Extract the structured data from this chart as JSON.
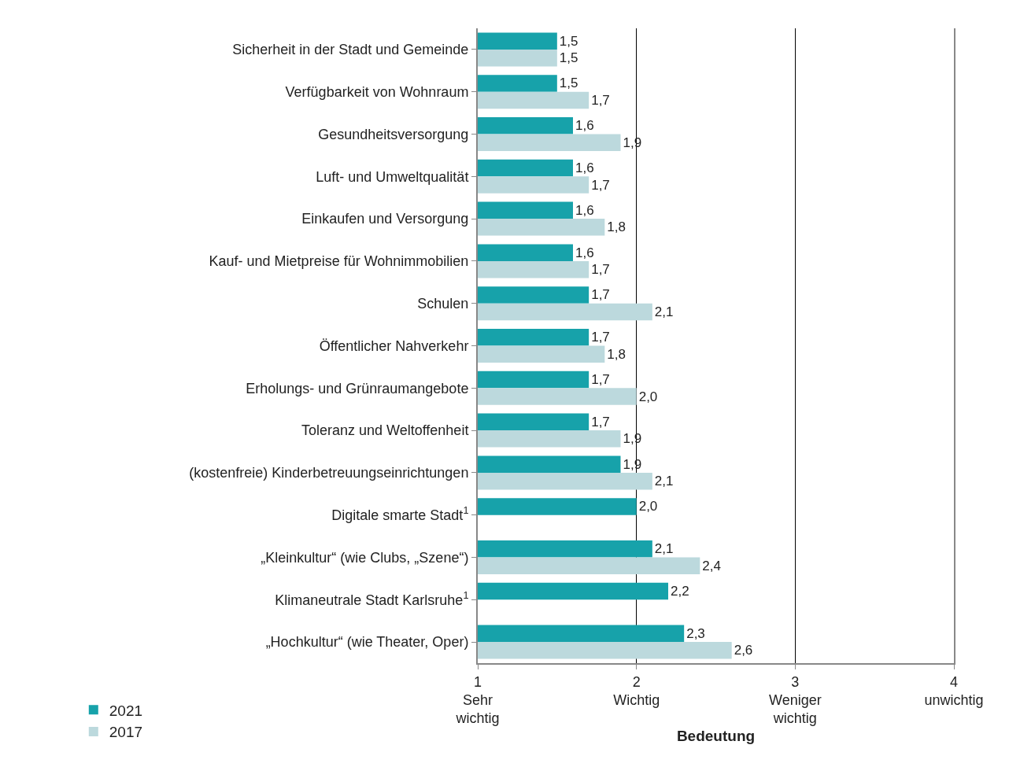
{
  "chart_data": {
    "type": "bar",
    "orientation": "horizontal",
    "xlabel": "Bedeutung",
    "categories": [
      "Sicherheit in der Stadt und Gemeinde",
      "Verfügbarkeit von Wohnraum",
      "Gesundheitsversorgung",
      "Luft- und Umweltqualität",
      "Einkaufen und Versorgung",
      "Kauf- und Mietpreise für Wohnimmobilien",
      "Schulen",
      "Öffentlicher Nahverkehr",
      "Erholungs- und Grünraumangebote",
      "Toleranz und Weltoffenheit",
      "(kostenfreie) Kinderbetreuungseinrichtungen",
      "Digitale smarte Stadt$^{1}$",
      "„Kleinkultur“ (wie Clubs, „Szene“)",
      "Klimaneutrale Stadt Karlsruhe$^{1}$",
      "„Hochkultur“ (wie Theater, Oper)"
    ],
    "series": [
      {
        "name": "2021",
        "color": "#17a2aa",
        "values": [
          1.5,
          1.5,
          1.6,
          1.6,
          1.6,
          1.6,
          1.7,
          1.7,
          1.7,
          1.7,
          1.9,
          2.0,
          2.1,
          2.2,
          2.3
        ],
        "value_labels": [
          "1,5",
          "1,5",
          "1,6",
          "1,6",
          "1,6",
          "1,6",
          "1,7",
          "1,7",
          "1,7",
          "1,7",
          "1,9",
          "2,0",
          "2,1",
          "2,2",
          "2,3"
        ]
      },
      {
        "name": "2017",
        "color": "#bcd9dd",
        "values": [
          1.5,
          1.7,
          1.9,
          1.7,
          1.8,
          1.7,
          2.1,
          1.8,
          2.0,
          1.9,
          2.1,
          null,
          2.4,
          null,
          2.6
        ],
        "value_labels": [
          "1,5",
          "1,7",
          "1,9",
          "1,7",
          "1,8",
          "1,7",
          "2,1",
          "1,8",
          "2,0",
          "1,9",
          "2,1",
          null,
          "2,4",
          null,
          "2,6"
        ]
      }
    ],
    "xlim": [
      1,
      4
    ],
    "xticks": [
      {
        "value": 1,
        "label": "1\nSehr\nwichtig"
      },
      {
        "value": 2,
        "label": "2\nWichtig"
      },
      {
        "value": 3,
        "label": "3\nWeniger\nwichtig"
      },
      {
        "value": 4,
        "label": "4\nunwichtig"
      }
    ],
    "grid": "x",
    "legend": "bottom left"
  }
}
